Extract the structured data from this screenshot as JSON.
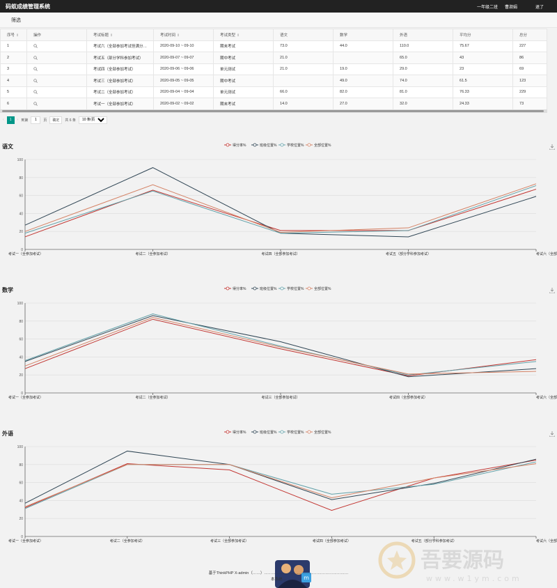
{
  "app": {
    "title": "码蚁成绩管理系统"
  },
  "topbar": {
    "class_label": "一年级二班",
    "user_label": "曹淑娟",
    "logout_label": "退了"
  },
  "filter": {
    "label": "筛选"
  },
  "table": {
    "columns": [
      "序号",
      "操作",
      "考试标题",
      "考试时间",
      "考试类型",
      "语文",
      "数学",
      "外语",
      "平均分",
      "总分"
    ],
    "rows": [
      [
        "1",
        "",
        "考试六（全部参加考试但满分…",
        "2020-09-10 ~ 09-10",
        "期末考试",
        "73.0",
        "44.0",
        "110.0",
        "75.67",
        "227"
      ],
      [
        "2",
        "",
        "考试五（部分学科参加考试）",
        "2020-09-07 ~ 09-07",
        "期中考试",
        "21.0",
        "",
        "65.0",
        "43",
        "86"
      ],
      [
        "3",
        "",
        "考试四（全部参加考试）",
        "2020-09-06 ~ 09-06",
        "单元测试",
        "21.0",
        "19.0",
        "29.0",
        "23",
        "69"
      ],
      [
        "4",
        "",
        "考试三（全部参加考试）",
        "2020-09-05 ~ 09-05",
        "期中考试",
        "",
        "49.0",
        "74.0",
        "61.5",
        "123"
      ],
      [
        "5",
        "",
        "考试二（全部参加考试）",
        "2020-09-04 ~ 09-04",
        "单元测试",
        "66.0",
        "82.0",
        "81.0",
        "76.33",
        "229"
      ],
      [
        "6",
        "",
        "考试一（全部参加考试）",
        "2020-09-02 ~ 09-02",
        "期末考试",
        "14.0",
        "27.0",
        "32.0",
        "24.33",
        "73"
      ]
    ]
  },
  "pager": {
    "current": "1",
    "goto_label": "到第",
    "goto_value": "1",
    "page_unit": "页",
    "confirm": "确定",
    "total": "共 6 条",
    "per_page": "10 条/页"
  },
  "colors": {
    "score": "#c23531",
    "class": "#2f4554",
    "school": "#61a0a8",
    "all": "#d48265",
    "accent": "#009688"
  },
  "chart_data": [
    {
      "type": "line",
      "title": "语文",
      "categories": [
        "考试一（全参加考试）",
        "考试二（全参加考试）",
        "考试四（全部参加考试）",
        "考试五（部分学科参加考试）",
        "考试六（全部参加考试但满分不同）"
      ],
      "ylim": [
        0,
        100
      ],
      "yticks": [
        0,
        20,
        40,
        60,
        80,
        100
      ],
      "legend_position": "top-center",
      "grid": true,
      "series": [
        {
          "name": "得分率%",
          "values": [
            14,
            66,
            21,
            21,
            67
          ]
        },
        {
          "name": "班级位置%",
          "values": [
            27,
            91,
            18,
            14,
            59
          ]
        },
        {
          "name": "学校位置%",
          "values": [
            18,
            65,
            18,
            21,
            71
          ]
        },
        {
          "name": "全部位置%",
          "values": [
            20,
            72,
            19,
            24,
            73
          ]
        }
      ]
    },
    {
      "type": "line",
      "title": "数学",
      "categories": [
        "考试一（全参加考试）",
        "考试二（全参加考试）",
        "考试三（全部参加考试）",
        "考试四（全部参加考试）",
        "考试六（全部参加考试但满分不同）"
      ],
      "ylim": [
        0,
        100
      ],
      "yticks": [
        0,
        20,
        40,
        60,
        80,
        100
      ],
      "legend_position": "top-center",
      "grid": true,
      "series": [
        {
          "name": "得分率%",
          "values": [
            27,
            82,
            49,
            19,
            37
          ]
        },
        {
          "name": "班级位置%",
          "values": [
            35,
            86,
            57,
            18,
            27
          ]
        },
        {
          "name": "学校位置%",
          "values": [
            36,
            88,
            52,
            20,
            35
          ]
        },
        {
          "name": "全部位置%",
          "values": [
            30,
            84,
            51,
            21,
            24
          ]
        }
      ]
    },
    {
      "type": "line",
      "title": "外语",
      "categories": [
        "考试一（全参加考试）",
        "考试二（全参加考试）",
        "考试三（全部参加考试）",
        "考试四（全部参加考试）",
        "考试五（部分学科参加考试）",
        "考试六（全部参加考试但满分不同）"
      ],
      "ylim": [
        0,
        100
      ],
      "yticks": [
        0,
        20,
        40,
        60,
        80,
        100
      ],
      "legend_position": "top-center",
      "grid": true,
      "series": [
        {
          "name": "得分率%",
          "values": [
            32,
            81,
            74,
            29,
            65,
            85
          ]
        },
        {
          "name": "班级位置%",
          "values": [
            37,
            95,
            80,
            41,
            59,
            86
          ]
        },
        {
          "name": "学校位置%",
          "values": [
            31,
            80,
            80,
            47,
            58,
            83
          ]
        },
        {
          "name": "全部位置%",
          "values": [
            33,
            80,
            80,
            43,
            65,
            81
          ]
        }
      ]
    }
  ],
  "footer": {
    "line1": "基于ThinkPHP X-admin（……）…………………………………………………………",
    "line2": "本系统…"
  },
  "watermark": {
    "text": "吾要源码",
    "url": "www.w1ym.com"
  }
}
